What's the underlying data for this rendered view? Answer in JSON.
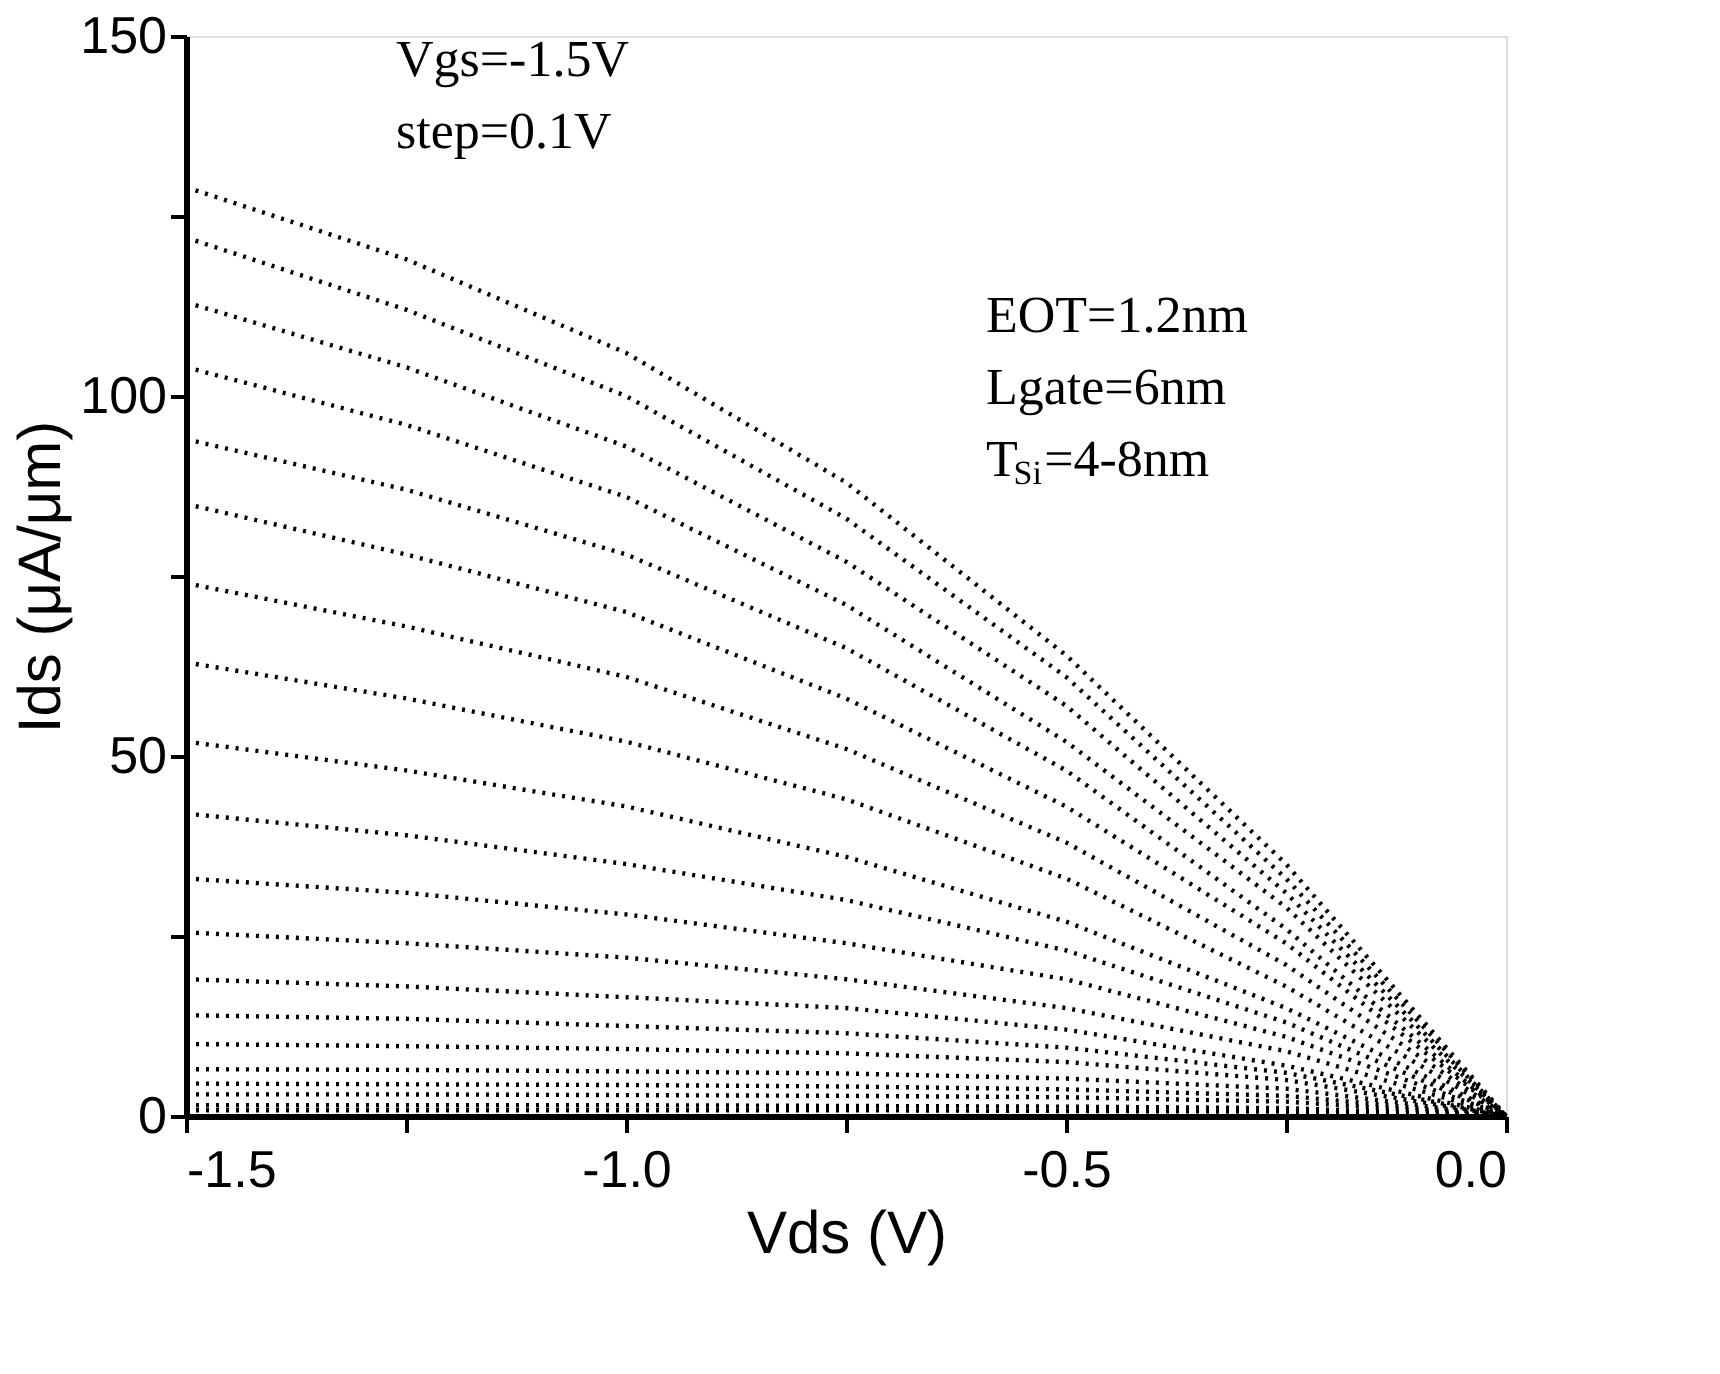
{
  "chart_data": {
    "type": "line",
    "xlabel": "Vds (V)",
    "ylabel": "Ids (μA/μm)",
    "x": [
      -1.5,
      -1.25,
      -1.0,
      -0.75,
      -0.5,
      -0.25,
      0.0
    ],
    "series": [
      {
        "color": "#000000",
        "values": [
          129,
          119,
          106,
          88,
          64,
          35,
          0
        ]
      },
      {
        "color": "#000000",
        "values": [
          122,
          112,
          100,
          83,
          61,
          33,
          0
        ]
      },
      {
        "color": "#000000",
        "values": [
          113,
          104,
          93,
          77,
          57,
          31,
          0
        ]
      },
      {
        "color": "#000000",
        "values": [
          104,
          96,
          86,
          71,
          52,
          29,
          0
        ]
      },
      {
        "color": "#000000",
        "values": [
          94,
          87,
          78,
          65,
          48,
          26,
          0
        ]
      },
      {
        "color": "#000000",
        "values": [
          85,
          78,
          70,
          58,
          43,
          24,
          0
        ]
      },
      {
        "color": "#000000",
        "values": [
          74,
          68,
          61,
          51,
          38,
          21,
          0
        ]
      },
      {
        "color": "#000000",
        "values": [
          63,
          58,
          52,
          44,
          33,
          18,
          0
        ]
      },
      {
        "color": "#000000",
        "values": [
          52,
          48,
          43,
          36,
          27,
          15,
          0
        ]
      },
      {
        "color": "#000000",
        "values": [
          42,
          39,
          35,
          30,
          23,
          13,
          0
        ]
      },
      {
        "color": "#000000",
        "values": [
          33,
          31,
          28,
          24,
          19,
          11,
          0
        ]
      },
      {
        "color": "#000000",
        "values": [
          25.5,
          24,
          22,
          19,
          15,
          9,
          0
        ]
      },
      {
        "color": "#000000",
        "values": [
          19,
          18,
          16.5,
          15,
          12,
          7,
          0
        ]
      },
      {
        "color": "#000000",
        "values": [
          14,
          13.5,
          12.5,
          11.5,
          9.5,
          6,
          0
        ]
      },
      {
        "color": "#000000",
        "values": [
          10,
          9.7,
          9.3,
          8.7,
          7.5,
          5,
          0
        ]
      },
      {
        "color": "#000000",
        "values": [
          6.5,
          6.4,
          6.2,
          5.9,
          5.2,
          3.8,
          0
        ]
      },
      {
        "color": "#000000",
        "values": [
          4.5,
          4.4,
          4.3,
          4.1,
          3.7,
          2.8,
          0
        ]
      },
      {
        "color": "#000000",
        "values": [
          3,
          3,
          2.9,
          2.8,
          2.6,
          2,
          0
        ]
      },
      {
        "color": "#000000",
        "values": [
          1.5,
          1.5,
          1.5,
          1.4,
          1.3,
          1.1,
          0
        ]
      },
      {
        "color": "#000000",
        "values": [
          0.8,
          0.8,
          0.8,
          0.8,
          0.7,
          0.6,
          0
        ]
      }
    ],
    "xlim": [
      -1.5,
      0.0
    ],
    "xticks": [
      {
        "value": -1.5,
        "label": "-1.5"
      },
      {
        "value": -1.25,
        "label": null
      },
      {
        "value": -1.0,
        "label": "-1.0"
      },
      {
        "value": -0.75,
        "label": null
      },
      {
        "value": -0.5,
        "label": "-0.5"
      },
      {
        "value": -0.25,
        "label": null
      },
      {
        "value": 0.0,
        "label": "0.0"
      }
    ],
    "ylim": [
      0,
      150
    ],
    "yticks": [
      0,
      {
        "value": 25,
        "label": null
      },
      50,
      {
        "value": 75,
        "label": null
      },
      100,
      {
        "value": 125,
        "label": null
      },
      150
    ],
    "annotations": [
      "Vgs=-1.5V",
      "step=0.1V",
      "EOT=1.2nm",
      "Lgate=6nm",
      "T$_{Si}$=4-8nm"
    ],
    "line_style": "dotted",
    "marker": "none",
    "grid": false,
    "legend": false
  }
}
